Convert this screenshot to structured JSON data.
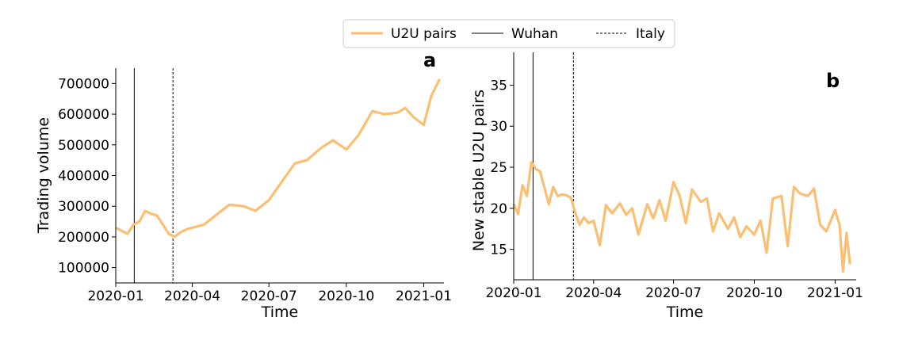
{
  "legend": {
    "items": [
      {
        "label": "U2U pairs",
        "style": "thick",
        "color": "#fbbf74"
      },
      {
        "label": "Wuhan",
        "style": "solid",
        "color": "#000000"
      },
      {
        "label": "Italy",
        "style": "dashed",
        "color": "#000000"
      }
    ]
  },
  "chart_data": [
    {
      "type": "line",
      "panel_label": "a",
      "xlabel": "Time",
      "ylabel": "Trading volume",
      "x_ticks": [
        "2020-01",
        "2020-04",
        "2020-07",
        "2020-10",
        "2021-01"
      ],
      "y_ticks": [
        100000,
        200000,
        300000,
        400000,
        500000,
        600000,
        700000
      ],
      "y_tick_labels": [
        "100000",
        "200000",
        "300000",
        "400000",
        "500000",
        "600000",
        "700000"
      ],
      "xlim": [
        "2020-01-01",
        "2021-01-25"
      ],
      "ylim": [
        50000,
        750000
      ],
      "vlines": [
        {
          "label": "Wuhan",
          "date": "2020-01-23",
          "style": "solid"
        },
        {
          "label": "Italy",
          "date": "2020-03-09",
          "style": "dashed"
        }
      ],
      "series": [
        {
          "name": "U2U pairs",
          "color": "#fbbf74",
          "x": [
            "2020-01-01",
            "2020-01-08",
            "2020-01-15",
            "2020-01-22",
            "2020-01-29",
            "2020-02-05",
            "2020-02-12",
            "2020-02-19",
            "2020-02-26",
            "2020-03-04",
            "2020-03-11",
            "2020-03-18",
            "2020-03-25",
            "2020-04-01",
            "2020-04-15",
            "2020-05-01",
            "2020-05-15",
            "2020-06-01",
            "2020-06-15",
            "2020-07-01",
            "2020-07-15",
            "2020-08-01",
            "2020-08-15",
            "2020-09-01",
            "2020-09-15",
            "2020-10-01",
            "2020-10-15",
            "2020-11-01",
            "2020-11-15",
            "2020-12-01",
            "2020-12-10",
            "2020-12-20",
            "2021-01-01",
            "2021-01-10",
            "2021-01-20"
          ],
          "values": [
            230000,
            220000,
            210000,
            240000,
            250000,
            285000,
            275000,
            270000,
            240000,
            210000,
            200000,
            215000,
            225000,
            230000,
            240000,
            275000,
            305000,
            300000,
            285000,
            320000,
            375000,
            440000,
            450000,
            490000,
            515000,
            485000,
            530000,
            610000,
            600000,
            605000,
            620000,
            590000,
            565000,
            660000,
            715000
          ]
        }
      ]
    },
    {
      "type": "line",
      "panel_label": "b",
      "xlabel": "Time",
      "ylabel": "New stable U2U pairs",
      "x_ticks": [
        "2020-01",
        "2020-04",
        "2020-07",
        "2020-10",
        "2021-01"
      ],
      "y_ticks": [
        15,
        20,
        25,
        30,
        35
      ],
      "y_tick_labels": [
        "15",
        "20",
        "25",
        "30",
        "35"
      ],
      "xlim": [
        "2020-01-01",
        "2021-01-25"
      ],
      "ylim": [
        11.3,
        39
      ],
      "vlines": [
        {
          "label": "Wuhan",
          "date": "2020-01-23",
          "style": "solid"
        },
        {
          "label": "Italy",
          "date": "2020-03-09",
          "style": "dashed"
        }
      ],
      "series": [
        {
          "name": "U2U pairs",
          "color": "#fbbf74",
          "x": [
            "2020-01-01",
            "2020-01-06",
            "2020-01-11",
            "2020-01-16",
            "2020-01-21",
            "2020-01-26",
            "2020-01-31",
            "2020-02-05",
            "2020-02-10",
            "2020-02-15",
            "2020-02-20",
            "2020-02-25",
            "2020-03-01",
            "2020-03-06",
            "2020-03-11",
            "2020-03-16",
            "2020-03-21",
            "2020-03-26",
            "2020-04-01",
            "2020-04-08",
            "2020-04-15",
            "2020-04-22",
            "2020-05-01",
            "2020-05-08",
            "2020-05-15",
            "2020-05-22",
            "2020-06-01",
            "2020-06-08",
            "2020-06-15",
            "2020-06-22",
            "2020-07-01",
            "2020-07-08",
            "2020-07-15",
            "2020-07-22",
            "2020-08-01",
            "2020-08-08",
            "2020-08-15",
            "2020-08-22",
            "2020-09-01",
            "2020-09-08",
            "2020-09-15",
            "2020-09-22",
            "2020-10-01",
            "2020-10-08",
            "2020-10-15",
            "2020-10-22",
            "2020-11-01",
            "2020-11-08",
            "2020-11-15",
            "2020-11-22",
            "2020-12-01",
            "2020-12-08",
            "2020-12-15",
            "2020-12-22",
            "2021-01-01",
            "2021-01-06",
            "2021-01-10",
            "2021-01-14",
            "2021-01-18"
          ],
          "values": [
            20.5,
            19.3,
            22.8,
            21.5,
            25.6,
            24.8,
            24.5,
            22.5,
            20.5,
            22.6,
            21.5,
            21.7,
            21.6,
            21.3,
            19.5,
            18.0,
            18.9,
            18.2,
            18.5,
            15.5,
            20.4,
            19.4,
            20.6,
            19.2,
            20.0,
            16.8,
            20.5,
            18.8,
            21.0,
            18.5,
            23.2,
            21.5,
            18.2,
            22.3,
            20.8,
            21.2,
            17.2,
            19.4,
            17.5,
            18.9,
            16.5,
            17.8,
            16.8,
            18.5,
            14.6,
            21.2,
            21.5,
            15.4,
            22.6,
            21.8,
            21.5,
            22.4,
            18.0,
            17.2,
            19.8,
            18.0,
            12.3,
            17.0,
            13.2
          ]
        }
      ]
    }
  ]
}
